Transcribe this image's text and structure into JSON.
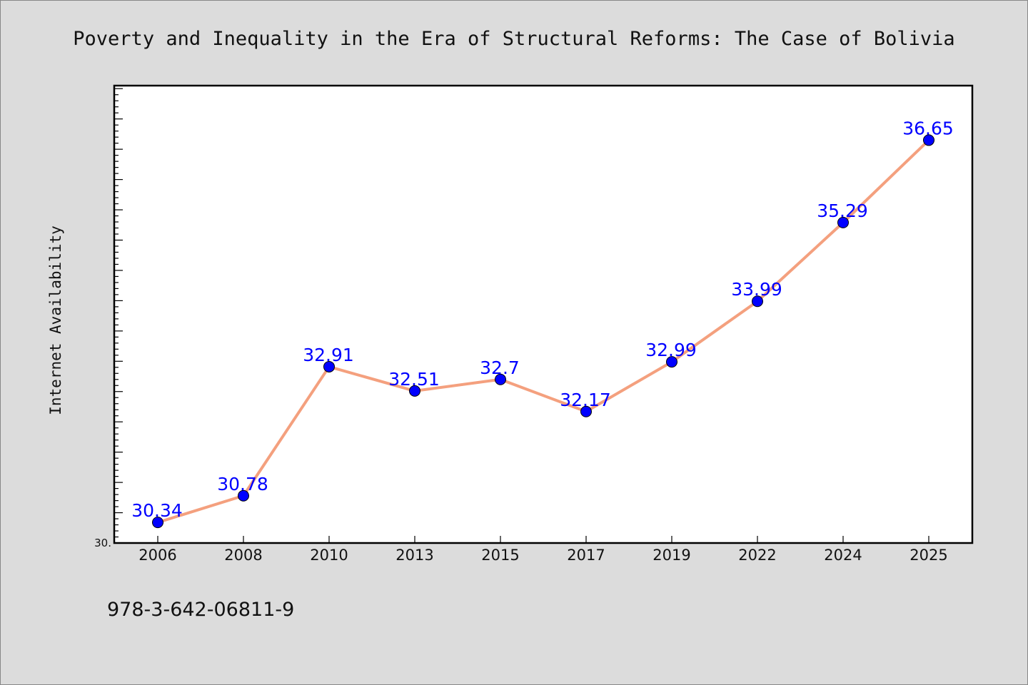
{
  "footer": {
    "isbn": "978-3-642-06811-9"
  },
  "colors": {
    "background": "#dcdcdc",
    "plot_background": "#ffffff",
    "line": "#f4a07e",
    "marker": "#0000ff",
    "data_label": "#0000ff"
  },
  "chart_data": {
    "type": "line",
    "title": "Poverty and Inequality in the Era of Structural Reforms: The Case of Bolivia",
    "xlabel": "",
    "ylabel": "Internet Availability",
    "categories": [
      "2006",
      "2008",
      "2010",
      "2013",
      "2015",
      "2017",
      "2019",
      "2022",
      "2024",
      "2025"
    ],
    "series": [
      {
        "values": [
          30.34,
          30.78,
          32.91,
          32.51,
          32.7,
          32.17,
          32.99,
          33.99,
          35.29,
          36.65
        ]
      }
    ],
    "data_labels": [
      "30.34",
      "30.78",
      "32.91",
      "32.51",
      "32.7",
      "32.17",
      "32.99",
      "33.99",
      "35.29",
      "36.65"
    ],
    "ylim": [
      30.0,
      37.55
    ],
    "y_tick_labels": [
      "30."
    ],
    "y_tick_step": 0.5,
    "y_minor_step": 0.1,
    "grid": false,
    "legend": "none"
  }
}
